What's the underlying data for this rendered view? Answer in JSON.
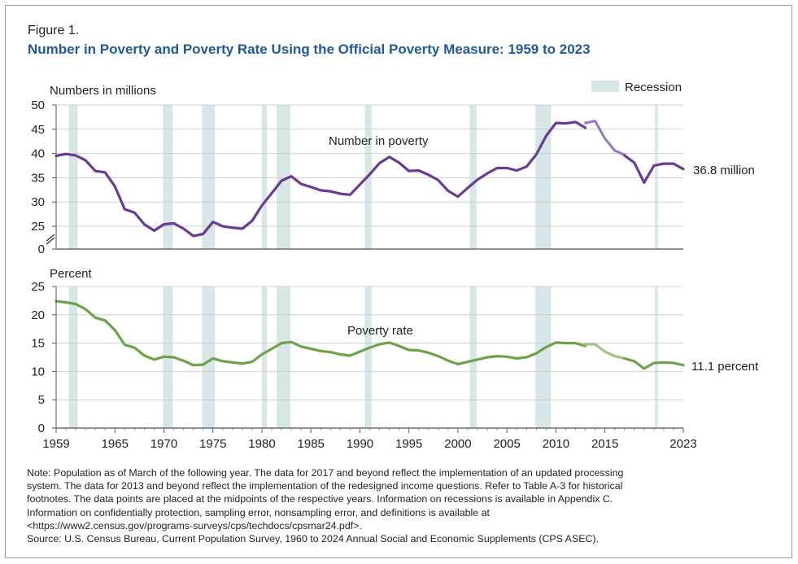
{
  "figure": {
    "label": "Figure 1.",
    "title": "Number in Poverty and Poverty Rate Using the Official Poverty Measure: 1959 to 2023"
  },
  "colors": {
    "title": "#1f5a96",
    "number_series": "#6b3a93",
    "number_series_light": "#9c7dbb",
    "rate_series": "#6ea24a",
    "rate_series_light": "#9fc483",
    "recession": "#d7e7e7",
    "grid": "#cfcfcf"
  },
  "chart_data": [
    {
      "id": "number",
      "type": "line",
      "ylabel": "Numbers in millions",
      "series_label": "Number in poverty",
      "end_label": "36.8 million",
      "legend": "Recession",
      "yticks": [
        0,
        25,
        30,
        35,
        40,
        45,
        50
      ],
      "ylim_break": [
        25,
        50
      ],
      "axis_break": true,
      "x": [
        1959,
        1960,
        1961,
        1962,
        1963,
        1964,
        1965,
        1966,
        1967,
        1968,
        1969,
        1970,
        1971,
        1972,
        1973,
        1974,
        1975,
        1976,
        1977,
        1978,
        1979,
        1980,
        1981,
        1982,
        1983,
        1984,
        1985,
        1986,
        1987,
        1988,
        1989,
        1990,
        1991,
        1992,
        1993,
        1994,
        1995,
        1996,
        1997,
        1998,
        1999,
        2000,
        2001,
        2002,
        2003,
        2004,
        2005,
        2006,
        2007,
        2008,
        2009,
        2010,
        2011,
        2012,
        2013,
        2013,
        2014,
        2015,
        2016,
        2017,
        2017,
        2018,
        2019,
        2020,
        2021,
        2022,
        2023
      ],
      "values": [
        39.5,
        39.9,
        39.6,
        38.6,
        36.4,
        36.1,
        33.2,
        28.5,
        27.8,
        25.4,
        24.1,
        25.4,
        25.6,
        24.5,
        23.0,
        23.4,
        25.9,
        25.0,
        24.7,
        24.5,
        26.1,
        29.3,
        31.8,
        34.4,
        35.3,
        33.7,
        33.1,
        32.4,
        32.2,
        31.7,
        31.5,
        33.6,
        35.7,
        38.0,
        39.3,
        38.1,
        36.4,
        36.5,
        35.6,
        34.5,
        32.3,
        31.1,
        32.9,
        34.6,
        35.9,
        37.0,
        37.0,
        36.5,
        37.3,
        39.8,
        43.6,
        46.3,
        46.2,
        46.5,
        45.3,
        46.3,
        46.7,
        43.1,
        40.6,
        39.7,
        39.6,
        38.1,
        34.0,
        37.5,
        37.9,
        37.9,
        36.8
      ],
      "segments": [
        {
          "from": 1959,
          "to": 2013,
          "style": "solid"
        },
        {
          "from": 2013,
          "to": 2017,
          "style": "light"
        },
        {
          "from": 2017,
          "to": 2023,
          "style": "solid"
        }
      ]
    },
    {
      "id": "rate",
      "type": "line",
      "ylabel": "Percent",
      "series_label": "Poverty rate",
      "end_label": "11.1 percent",
      "yticks": [
        0,
        5,
        10,
        15,
        20,
        25
      ],
      "ylim": [
        0,
        25
      ],
      "x": [
        1959,
        1960,
        1961,
        1962,
        1963,
        1964,
        1965,
        1966,
        1967,
        1968,
        1969,
        1970,
        1971,
        1972,
        1973,
        1974,
        1975,
        1976,
        1977,
        1978,
        1979,
        1980,
        1981,
        1982,
        1983,
        1984,
        1985,
        1986,
        1987,
        1988,
        1989,
        1990,
        1991,
        1992,
        1993,
        1994,
        1995,
        1996,
        1997,
        1998,
        1999,
        2000,
        2001,
        2002,
        2003,
        2004,
        2005,
        2006,
        2007,
        2008,
        2009,
        2010,
        2011,
        2012,
        2013,
        2013,
        2014,
        2015,
        2016,
        2017,
        2017,
        2018,
        2019,
        2020,
        2021,
        2022,
        2023
      ],
      "values": [
        22.4,
        22.2,
        21.9,
        21.0,
        19.5,
        19.0,
        17.3,
        14.7,
        14.2,
        12.8,
        12.1,
        12.6,
        12.5,
        11.9,
        11.1,
        11.2,
        12.3,
        11.8,
        11.6,
        11.4,
        11.7,
        13.0,
        14.0,
        15.0,
        15.2,
        14.4,
        14.0,
        13.6,
        13.4,
        13.0,
        12.8,
        13.5,
        14.2,
        14.8,
        15.1,
        14.5,
        13.8,
        13.7,
        13.3,
        12.7,
        11.9,
        11.3,
        11.7,
        12.1,
        12.5,
        12.7,
        12.6,
        12.3,
        12.5,
        13.2,
        14.3,
        15.1,
        15.0,
        15.0,
        14.5,
        14.8,
        14.8,
        13.5,
        12.7,
        12.3,
        12.3,
        11.8,
        10.5,
        11.5,
        11.6,
        11.5,
        11.1
      ],
      "segments": [
        {
          "from": 1959,
          "to": 2013,
          "style": "solid"
        },
        {
          "from": 2013,
          "to": 2017,
          "style": "light"
        },
        {
          "from": 2017,
          "to": 2023,
          "style": "solid"
        }
      ]
    }
  ],
  "x_axis": {
    "ticks": [
      "1959",
      "1965",
      "1970",
      "1975",
      "1980",
      "1985",
      "1990",
      "1995",
      "2000",
      "2005",
      "2010",
      "2015",
      "2023"
    ],
    "tick_years": [
      1959,
      1965,
      1970,
      1975,
      1980,
      1985,
      1990,
      1995,
      2000,
      2005,
      2010,
      2015,
      2023
    ],
    "xlim": [
      1959,
      2023
    ]
  },
  "recessions": [
    [
      1960.3,
      1961.2
    ],
    [
      1969.9,
      1970.9
    ],
    [
      1973.9,
      1975.2
    ],
    [
      1980.0,
      1980.5
    ],
    [
      1981.5,
      1982.9
    ],
    [
      1990.5,
      1991.2
    ],
    [
      2001.2,
      2001.9
    ],
    [
      2007.9,
      2009.5
    ],
    [
      2020.1,
      2020.4
    ]
  ],
  "note": {
    "line1": "Note: Population as of March of the following year. The data for 2017 and beyond reflect the implementation of an updated processing",
    "line2": "system. The data for 2013 and beyond reflect the implementation of the redesigned income questions. Refer to Table A-3 for historical",
    "line3": "footnotes. The data points are placed at the midpoints of the respective years. Information on recessions is available in Appendix C.",
    "line4": "Information on confidentially protection, sampling error, nonsampling error, and definitions is available at",
    "line5": "<https://www2.census.gov/programs-surveys/cps/techdocs/cpsmar24.pdf>.",
    "source": "Source: U.S. Census Bureau, Current Population Survey, 1960 to 2024 Annual Social and Economic Supplements (CPS ASEC)."
  }
}
